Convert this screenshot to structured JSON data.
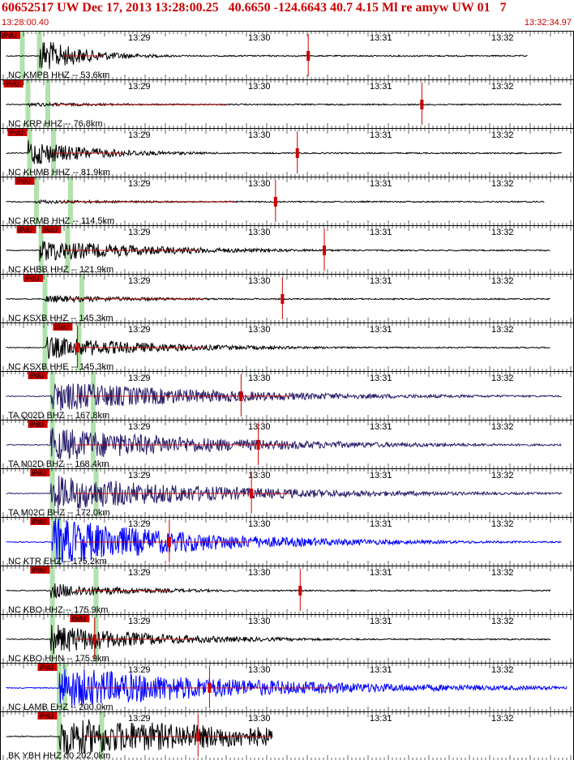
{
  "header": {
    "title": "60652517 UW Dec 17, 2013 13:28:00.25   40.6650 -124.6643 40.7 4.15 Ml re amyw UW 01   7",
    "start_time": "13:28:00.40",
    "end_time": "13:32:34.97"
  },
  "time_ticks": [
    "13:29",
    "13:30",
    "13:31",
    "13:32"
  ],
  "colors": {
    "red": "#cc0000",
    "green": "#a9dfa4",
    "blue": "#0000ff",
    "navy": "#2b1e6a",
    "black": "#000000"
  },
  "traces": [
    {
      "label": "NC KMPB HHZ -- 53.6km",
      "color": "black",
      "picks": [
        "iPdU"
      ],
      "onset": 0.07,
      "end": 0.93,
      "amp": 0.95,
      "dur": 0.08,
      "green": [
        0.035,
        0.065
      ],
      "redTick": 0.537,
      "pickX": [
        0.0
      ]
    },
    {
      "label": "NC KRP HHZ -- 76.8km",
      "color": "black",
      "picks": [
        "iPdU"
      ],
      "onset": 0.05,
      "end": 0.99,
      "amp": 0.1,
      "dur": 0.25,
      "green": [
        0.045,
        0.08
      ],
      "redTick": 0.735,
      "pickX": [
        0.005
      ]
    },
    {
      "label": "NC KHMB HHZ -- 81.9km",
      "color": "black",
      "picks": [
        "iPdU"
      ],
      "onset": 0.05,
      "end": 0.99,
      "amp": 0.7,
      "dur": 0.12,
      "green": [
        0.048,
        0.09
      ],
      "redTick": 0.518,
      "pickX": [
        0.012
      ]
    },
    {
      "label": "NC KRMB HHZ -- 114.5km",
      "color": "black",
      "picks": [
        "iPdU"
      ],
      "onset": 0.063,
      "end": 0.96,
      "amp": 0.1,
      "dur": 0.25,
      "green": [
        0.06,
        0.12
      ],
      "redTick": 0.48,
      "pickX": [
        0.025
      ]
    },
    {
      "label": "NC KHBB HHZ -- 121.9km",
      "color": "black",
      "picks": [
        "iPdU",
        "iSdU"
      ],
      "onset": 0.07,
      "end": 0.97,
      "amp": 0.6,
      "dur": 0.2,
      "green": [
        0.068,
        0.115
      ],
      "redTick": 0.565,
      "pickX": [
        0.028,
        0.072
      ]
    },
    {
      "label": "NC KSXB HHZ -- 145.3km",
      "color": "black",
      "picks": [
        "iPdU"
      ],
      "onset": 0.08,
      "end": 0.97,
      "amp": 0.2,
      "dur": 0.2,
      "green": [
        0.075,
        0.14
      ],
      "redTick": 0.492,
      "pickX": [
        0.04
      ]
    },
    {
      "label": "NC KSXB HHE -- 145.3km",
      "color": "black",
      "picks": [
        "iSdU"
      ],
      "onset": 0.08,
      "end": 0.97,
      "amp": 0.6,
      "dur": 0.2,
      "green": [
        0.075,
        0.135
      ],
      "redTick": 0.135,
      "pickX": [
        0.092
      ]
    },
    {
      "label": "TA Q02D BHZ -- 167.8km",
      "color": "navy",
      "picks": [
        "iPdU"
      ],
      "onset": 0.09,
      "end": 0.99,
      "amp": 0.8,
      "dur": 0.3,
      "green": [
        0.088,
        0.16
      ],
      "redTick": 0.42,
      "pickX": [
        0.048
      ]
    },
    {
      "label": "TA N02D BHZ -- 168.4km",
      "color": "navy",
      "picks": [
        "iPdU"
      ],
      "onset": 0.09,
      "end": 0.99,
      "amp": 0.9,
      "dur": 0.3,
      "green": [
        0.088,
        0.16
      ],
      "redTick": 0.45,
      "pickX": [
        0.048
      ]
    },
    {
      "label": "TA M02C BHZ -- 172.0km",
      "color": "navy",
      "picks": [
        "iPdU"
      ],
      "onset": 0.09,
      "end": 0.99,
      "amp": 0.95,
      "dur": 0.3,
      "green": [
        0.088,
        0.165
      ],
      "redTick": 0.438,
      "pickX": [
        0.052
      ]
    },
    {
      "label": "NC KTR EHZ -- 175.2km",
      "color": "blue",
      "picks": [
        "iPdU"
      ],
      "onset": 0.092,
      "end": 0.99,
      "amp": 1.3,
      "dur": 0.25,
      "green": [
        0.09,
        0.1
      ],
      "redTick": 0.295,
      "pickX": [
        0.052
      ]
    },
    {
      "label": "NC KBO HHZ -- 175.9km",
      "color": "black",
      "picks": [
        "iPdU"
      ],
      "onset": 0.09,
      "end": 0.97,
      "amp": 0.4,
      "dur": 0.15,
      "green": [
        0.088,
        0.165
      ],
      "redTick": 0.523,
      "pickX": [
        0.052
      ]
    },
    {
      "label": "NC KBO HHN -- 175.9km",
      "color": "black",
      "picks": [
        "iSdU"
      ],
      "onset": 0.09,
      "end": 0.97,
      "amp": 0.8,
      "dur": 0.18,
      "green": [
        0.088,
        0.165
      ],
      "redTick": 0.165,
      "pickX": [
        0.122
      ]
    },
    {
      "label": "NC LAMB EHZ -- 200.0km",
      "color": "blue",
      "picks": [
        "iPdU"
      ],
      "onset": 0.105,
      "end": 0.999,
      "amp": 1.1,
      "dur": 0.35,
      "green": [
        0.1,
        0.11
      ],
      "redTick": 0.365,
      "pickX": [
        0.065
      ]
    },
    {
      "label": "BK YBH HHZ 00 202.0km",
      "color": "black",
      "picks": [
        "iPdU"
      ],
      "onset": 0.105,
      "end": 0.48,
      "amp": 1.0,
      "dur": 0.5,
      "green": [
        0.1,
        0.175
      ],
      "redTick": 0.345,
      "pickX": [
        0.065
      ]
    }
  ]
}
